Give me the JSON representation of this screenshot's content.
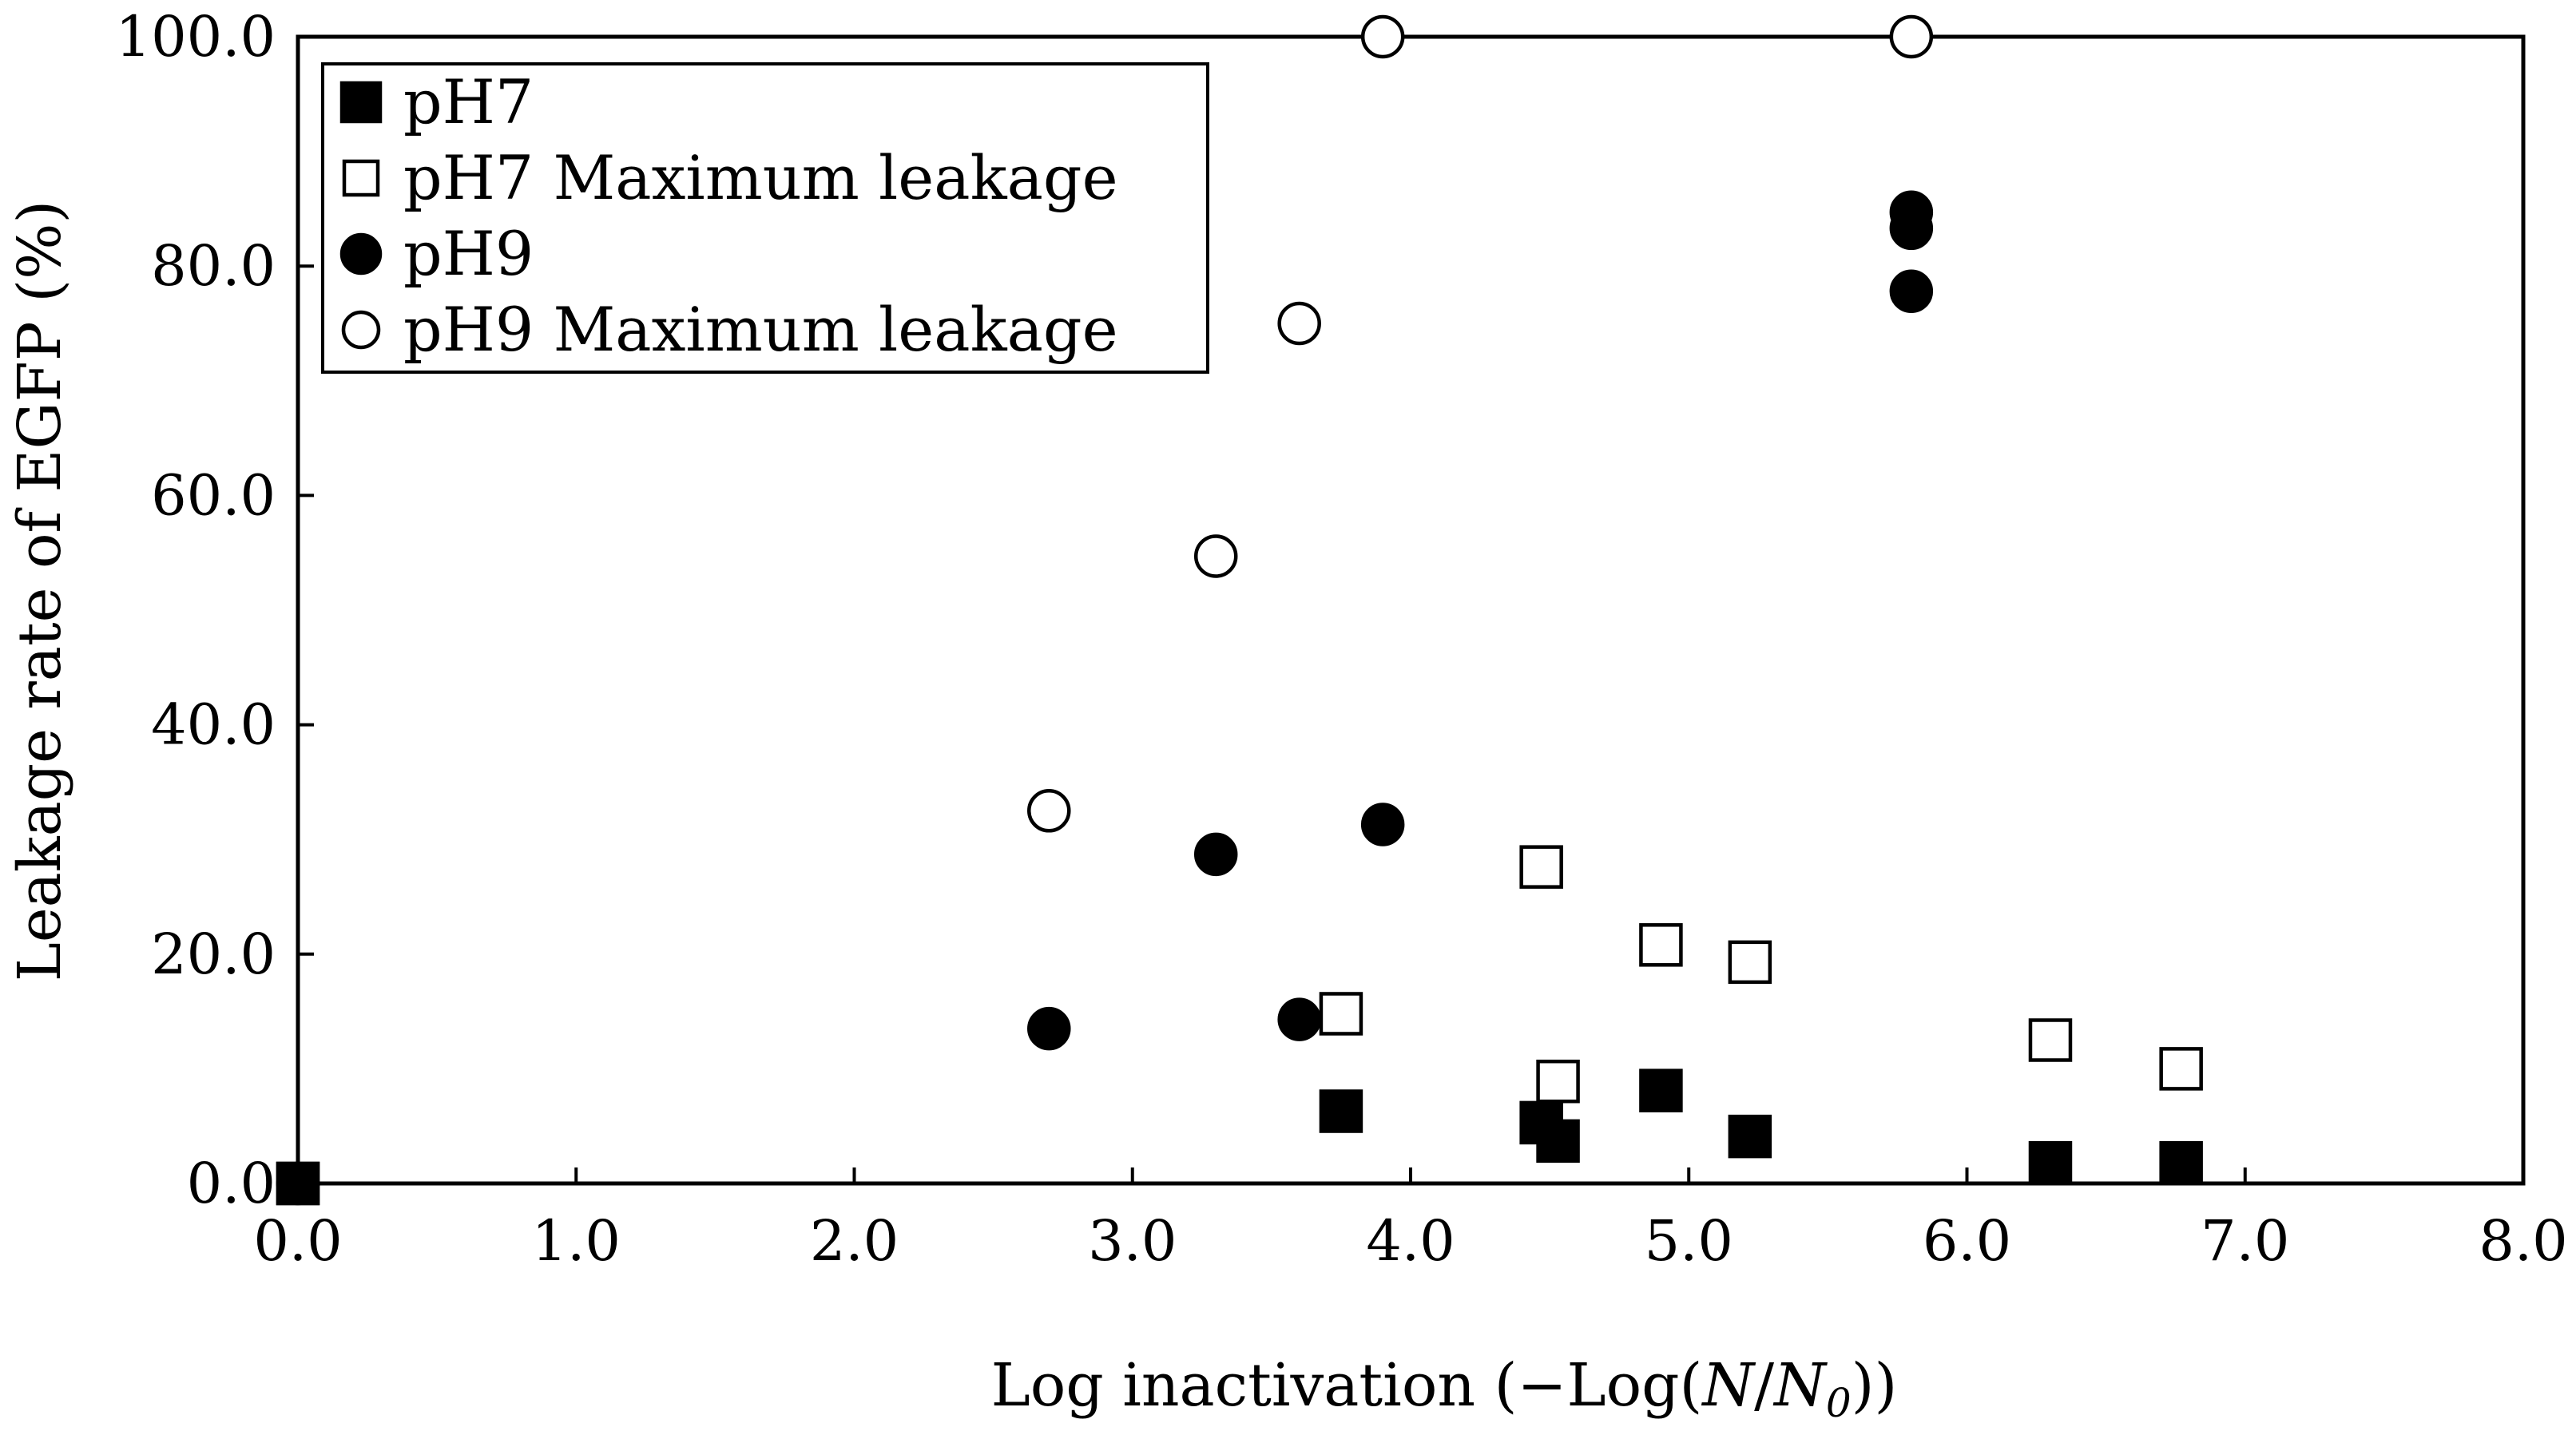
{
  "chart_data": {
    "type": "scatter",
    "title": "",
    "xlabel": "Log inactivation (−Log(N/N0))",
    "xlabel_parts": {
      "prefix": "Log inactivation (−Log(",
      "N": "N",
      "slash": "/",
      "N0": "N",
      "sub0": "0",
      "suffix": "))"
    },
    "ylabel": "Leakage rate of EGFP (%)",
    "xlim": [
      0,
      8
    ],
    "ylim": [
      0,
      100
    ],
    "xticks": [
      0,
      1,
      2,
      3,
      4,
      5,
      6,
      7,
      8
    ],
    "yticks": [
      0,
      20,
      40,
      60,
      80,
      100
    ],
    "xtick_labels": [
      "0.0",
      "1.0",
      "2.0",
      "3.0",
      "4.0",
      "5.0",
      "6.0",
      "7.0",
      "8.0"
    ],
    "ytick_labels": [
      "0.0",
      "20.0",
      "40.0",
      "60.0",
      "80.0",
      "100.0"
    ],
    "legend_position": "top-left",
    "grid": false,
    "series": [
      {
        "name": "pH7",
        "marker": "square",
        "filled": true,
        "points": [
          [
            0.0,
            0.0
          ],
          [
            3.75,
            6.3
          ],
          [
            4.47,
            5.3
          ],
          [
            4.53,
            3.7
          ],
          [
            4.9,
            8.1
          ],
          [
            5.22,
            4.1
          ],
          [
            6.3,
            1.8
          ],
          [
            6.77,
            1.8
          ]
        ]
      },
      {
        "name": "pH7 Maximum leakage",
        "marker": "square",
        "filled": false,
        "points": [
          [
            0.0,
            0.0
          ],
          [
            3.75,
            14.8
          ],
          [
            4.47,
            27.6
          ],
          [
            4.53,
            8.9
          ],
          [
            4.9,
            20.8
          ],
          [
            5.22,
            19.3
          ],
          [
            6.3,
            12.5
          ],
          [
            6.77,
            10.0
          ]
        ]
      },
      {
        "name": "pH9",
        "marker": "circle",
        "filled": true,
        "points": [
          [
            0.0,
            0.0
          ],
          [
            2.7,
            13.5
          ],
          [
            3.3,
            28.7
          ],
          [
            3.6,
            14.3
          ],
          [
            3.9,
            31.3
          ],
          [
            5.8,
            77.8
          ],
          [
            5.8,
            83.3
          ],
          [
            5.8,
            84.7
          ]
        ]
      },
      {
        "name": "pH9 Maximum leakage",
        "marker": "circle",
        "filled": false,
        "points": [
          [
            0.0,
            0.0
          ],
          [
            2.7,
            32.5
          ],
          [
            3.3,
            54.7
          ],
          [
            3.6,
            75.0
          ],
          [
            3.9,
            100.0
          ],
          [
            5.8,
            100.0
          ]
        ]
      }
    ]
  }
}
